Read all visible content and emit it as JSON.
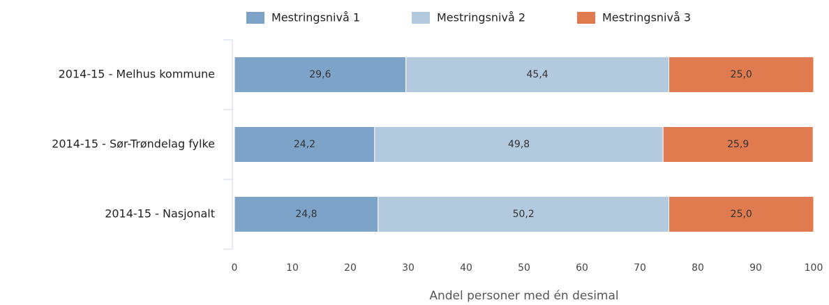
{
  "chart_data": {
    "type": "stacked-bar-horizontal",
    "x_label": "Andel personer med én desimal",
    "categories": [
      "2014-15 - Melhus kommune",
      "2014-15 - Sør-Trøndelag fylke",
      "2014-15 - Nasjonalt"
    ],
    "series": [
      {
        "name": "Mestringsnivå 1",
        "color": "#7ea3c9",
        "values": [
          29.6,
          24.2,
          24.8
        ],
        "value_labels": [
          "29,6",
          "24,2",
          "24,8"
        ]
      },
      {
        "name": "Mestringsnivå 2",
        "color": "#b3c9de",
        "values": [
          45.4,
          49.8,
          50.2
        ],
        "value_labels": [
          "45,4",
          "49,8",
          "50,2"
        ]
      },
      {
        "name": "Mestringsnivå 3",
        "color": "#e07b4f",
        "values": [
          25.0,
          25.9,
          25.0
        ],
        "value_labels": [
          "25,0",
          "25,9",
          "25,0"
        ]
      }
    ],
    "xlim": [
      0,
      100
    ],
    "xticks": [
      0,
      10,
      20,
      30,
      40,
      50,
      60,
      70,
      80,
      90,
      100
    ],
    "legend": "top"
  }
}
